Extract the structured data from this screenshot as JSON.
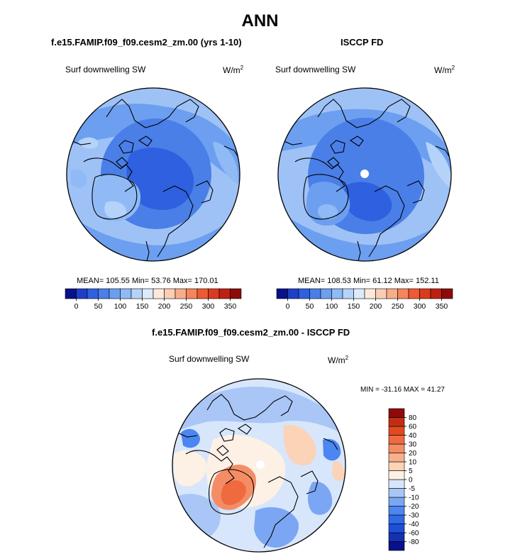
{
  "title": "ANN",
  "panels": [
    {
      "title": "f.e15.FAMIP.f09_f09.cesm2_zm.00 (yrs 1-10)",
      "variable": "Surf downwelling SW",
      "units_base": "W/m",
      "units_exp": "2",
      "stats": "MEAN= 105.55  Min=  53.76  Max= 170.01"
    },
    {
      "title": "ISCCP FD",
      "variable": "Surf downwelling SW",
      "units_base": "W/m",
      "units_exp": "2",
      "stats": "MEAN= 108.53  Min=  61.12  Max= 152.11"
    },
    {
      "title": "f.e15.FAMIP.f09_f09.cesm2_zm.00 - ISCCP FD",
      "variable": "Surf downwelling SW",
      "units_base": "W/m",
      "units_exp": "2",
      "stats": "MIN = -31.16 MAX =  41.27"
    }
  ],
  "colorbar_abs": {
    "colors": [
      "#08108a",
      "#1f3fc8",
      "#2f60e0",
      "#4a7fe8",
      "#6c9ff0",
      "#8fbaf5",
      "#b5d3f8",
      "#dcebfb",
      "#fde9dc",
      "#fbcdb4",
      "#f7ad8a",
      "#f4855c",
      "#ee5a32",
      "#dc3a1e",
      "#bd2012",
      "#8e0a0a"
    ],
    "tick_labels": [
      "0",
      "50",
      "100",
      "150",
      "200",
      "250",
      "300",
      "350"
    ]
  },
  "colorbar_diff": {
    "colors": [
      "#08108a",
      "#1530b0",
      "#1f4fd8",
      "#2f6be8",
      "#4c86f0",
      "#7ba6f3",
      "#a9c6f7",
      "#d8e6fb",
      "#fdf1e6",
      "#fbd3b6",
      "#f8b08c",
      "#f48d66",
      "#ef6a3f",
      "#e14a21",
      "#c22e13",
      "#8e0a0a"
    ],
    "tick_labels": [
      "80",
      "60",
      "40",
      "30",
      "20",
      "10",
      "5",
      "0",
      "-5",
      "-10",
      "-20",
      "-30",
      "-40",
      "-60",
      "-80"
    ]
  },
  "chart_data": [
    {
      "type": "heatmap",
      "projection": "north polar stereographic",
      "title": "f.e15.FAMIP.f09_f09.cesm2_zm.00 (yrs 1-10)",
      "variable": "Surf downwelling SW",
      "units": "W/m2",
      "mean": 105.55,
      "min": 53.76,
      "max": 170.01,
      "colorbar_levels": [
        0,
        25,
        50,
        75,
        100,
        125,
        150,
        175,
        200,
        225,
        250,
        275,
        300,
        325,
        350
      ]
    },
    {
      "type": "heatmap",
      "projection": "north polar stereographic",
      "title": "ISCCP FD",
      "variable": "Surf downwelling SW",
      "units": "W/m2",
      "mean": 108.53,
      "min": 61.12,
      "max": 152.11,
      "colorbar_levels": [
        0,
        25,
        50,
        75,
        100,
        125,
        150,
        175,
        200,
        225,
        250,
        275,
        300,
        325,
        350
      ]
    },
    {
      "type": "heatmap",
      "projection": "north polar stereographic",
      "title": "f.e15.FAMIP.f09_f09.cesm2_zm.00 - ISCCP FD",
      "variable": "Surf downwelling SW",
      "units": "W/m2",
      "min": -31.16,
      "max": 41.27,
      "colorbar_levels": [
        -80,
        -60,
        -40,
        -30,
        -20,
        -10,
        -5,
        0,
        5,
        10,
        20,
        30,
        40,
        60,
        80
      ]
    }
  ]
}
